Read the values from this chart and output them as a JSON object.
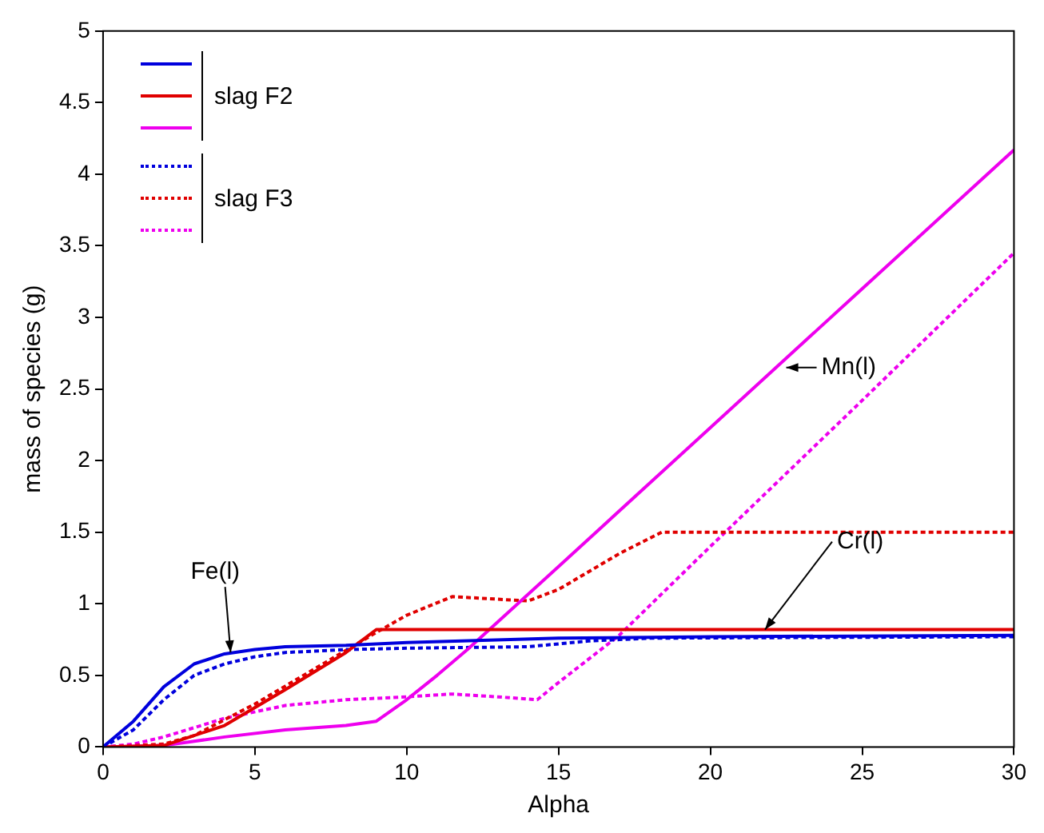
{
  "chart_data": {
    "type": "line",
    "xlabel": "Alpha",
    "ylabel": "mass of species (g)",
    "xlim": [
      0,
      30
    ],
    "ylim": [
      0,
      5
    ],
    "xticks": [
      0,
      5,
      10,
      15,
      20,
      25,
      30
    ],
    "yticks": [
      0,
      0.5,
      1,
      1.5,
      2,
      2.5,
      3,
      3.5,
      4,
      4.5,
      5
    ],
    "grid": false,
    "legend": "top left",
    "marker": "none",
    "series": [
      {
        "color": "#0000dd",
        "line_style": "solid",
        "x": [
          0,
          1,
          2,
          3,
          4,
          5,
          6,
          8,
          10,
          15,
          20,
          30
        ],
        "values": [
          0,
          0.18,
          0.42,
          0.58,
          0.65,
          0.68,
          0.7,
          0.71,
          0.73,
          0.76,
          0.77,
          0.78
        ]
      },
      {
        "name": "slag F2",
        "color": "#e00000",
        "line_style": "solid",
        "x": [
          0,
          2,
          4,
          6,
          8,
          9,
          30
        ],
        "values": [
          0,
          0.01,
          0.15,
          0.4,
          0.66,
          0.82,
          0.82
        ]
      },
      {
        "color": "#ee00ee",
        "line_style": "solid",
        "x": [
          0,
          2,
          4,
          6,
          8,
          9,
          10,
          11,
          12,
          15,
          20,
          25,
          30
        ],
        "values": [
          0,
          0.01,
          0.07,
          0.12,
          0.15,
          0.18,
          0.33,
          0.5,
          0.68,
          1.26,
          2.23,
          3.2,
          4.17
        ]
      },
      {
        "color": "#0000dd",
        "line_style": "dotted",
        "x": [
          0,
          1,
          2,
          3,
          4,
          5,
          6,
          8,
          10,
          14,
          16,
          18,
          30
        ],
        "values": [
          0,
          0.12,
          0.33,
          0.5,
          0.58,
          0.63,
          0.66,
          0.68,
          0.69,
          0.7,
          0.74,
          0.76,
          0.77
        ]
      },
      {
        "name": "slag F3",
        "color": "#e00000",
        "line_style": "dotted",
        "x": [
          0,
          2,
          3,
          5,
          7,
          9,
          10,
          11.5,
          14,
          15,
          17,
          18.4,
          30
        ],
        "values": [
          0,
          0.02,
          0.08,
          0.3,
          0.55,
          0.8,
          0.92,
          1.05,
          1.02,
          1.1,
          1.35,
          1.5,
          1.5
        ]
      },
      {
        "color": "#ee00ee",
        "line_style": "dotted",
        "x": [
          0,
          1,
          2,
          4,
          6,
          8,
          10,
          11.5,
          13,
          14.3,
          15,
          17,
          20,
          25,
          30
        ],
        "values": [
          0,
          0.02,
          0.07,
          0.2,
          0.29,
          0.33,
          0.35,
          0.37,
          0.35,
          0.33,
          0.45,
          0.78,
          1.4,
          2.42,
          3.45
        ]
      }
    ],
    "annotations": [
      {
        "text": "Fe(l)",
        "x": 4.2,
        "y": 0.66
      },
      {
        "text": "Mn(l)",
        "x": 22.5,
        "y": 2.65
      },
      {
        "text": "Cr(l)",
        "x": 21.8,
        "y": 0.82
      }
    ]
  }
}
